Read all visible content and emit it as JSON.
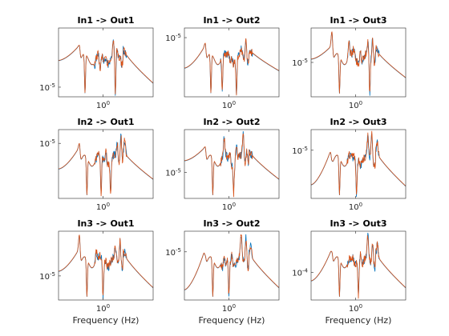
{
  "chart_data": [
    {
      "type": "line",
      "title": "In1 -> Out1",
      "xlabel": "",
      "xtick_label": "10^0",
      "ytick_label": "10^-5",
      "ytick_frac": 0.86,
      "series": [
        {
          "name": "",
          "color": "#0072BD"
        },
        {
          "name": "",
          "color": "#D95319"
        }
      ],
      "modes": [
        [
          0.22,
          0.25
        ],
        [
          0.38,
          0.55
        ],
        [
          0.44,
          0.62
        ],
        [
          0.5,
          0.45
        ],
        [
          0.58,
          0.2
        ],
        [
          0.62,
          0.3
        ],
        [
          0.65,
          0.4
        ]
      ],
      "anti": [
        0.28,
        0.6
      ],
      "edges": [
        0.47,
        0.8
      ]
    },
    {
      "type": "line",
      "title": "In1 -> Out2",
      "xlabel": "",
      "xtick_label": "10^0",
      "ytick_label": "10^-5",
      "ytick_frac": 0.14,
      "series": [
        {
          "name": "",
          "color": "#0072BD"
        },
        {
          "name": "",
          "color": "#D95319"
        }
      ],
      "modes": [
        [
          0.22,
          0.22
        ],
        [
          0.42,
          0.35
        ],
        [
          0.46,
          0.38
        ],
        [
          0.5,
          0.42
        ],
        [
          0.6,
          0.3
        ],
        [
          0.65,
          0.15
        ],
        [
          0.69,
          0.35
        ]
      ],
      "anti": [
        0.28,
        0.4,
        0.55
      ],
      "edges": [
        0.58,
        0.62
      ]
    },
    {
      "type": "line",
      "title": "In1 -> Out3",
      "xlabel": "",
      "xtick_label": "10^0",
      "ytick_label": "10^-5",
      "ytick_frac": 0.5,
      "series": [
        {
          "name": "",
          "color": "#0072BD"
        },
        {
          "name": "",
          "color": "#D95319"
        }
      ],
      "modes": [
        [
          0.22,
          0.05
        ],
        [
          0.4,
          0.2
        ],
        [
          0.45,
          0.3
        ],
        [
          0.52,
          0.35
        ],
        [
          0.6,
          0.2
        ],
        [
          0.65,
          0.15
        ],
        [
          0.69,
          0.3
        ]
      ],
      "anti": [
        0.3,
        0.62
      ],
      "edges": [
        0.45,
        0.72
      ]
    },
    {
      "type": "line",
      "title": "In2 -> Out1",
      "xlabel": "",
      "xtick_label": "10^0",
      "ytick_label": "10^-5",
      "ytick_frac": 0.2,
      "series": [
        {
          "name": "",
          "color": "#0072BD"
        },
        {
          "name": "",
          "color": "#D95319"
        }
      ],
      "modes": [
        [
          0.22,
          0.2
        ],
        [
          0.42,
          0.35
        ],
        [
          0.46,
          0.4
        ],
        [
          0.5,
          0.3
        ],
        [
          0.62,
          0.2
        ],
        [
          0.66,
          0.1
        ],
        [
          0.7,
          0.15
        ]
      ],
      "anti": [
        0.3,
        0.45,
        0.55
      ],
      "edges": [
        0.57,
        0.72
      ]
    },
    {
      "type": "line",
      "title": "In2 -> Out2",
      "xlabel": "",
      "xtick_label": "10^0",
      "ytick_label": "10^-5",
      "ytick_frac": 0.62,
      "series": [
        {
          "name": "",
          "color": "#0072BD"
        },
        {
          "name": "",
          "color": "#D95319"
        }
      ],
      "modes": [
        [
          0.22,
          0.25
        ],
        [
          0.42,
          0.1
        ],
        [
          0.48,
          0.35
        ],
        [
          0.55,
          0.25
        ],
        [
          0.62,
          0.05
        ],
        [
          0.66,
          0.3
        ]
      ],
      "anti": [
        0.3,
        0.52
      ],
      "edges": [
        0.45,
        0.72
      ]
    },
    {
      "type": "line",
      "title": "In2 -> Out3",
      "xlabel": "",
      "xtick_label": "10^0",
      "ytick_label": "10^-5",
      "ytick_frac": 0.3,
      "series": [
        {
          "name": "",
          "color": "#0072BD"
        },
        {
          "name": "",
          "color": "#D95319"
        }
      ],
      "modes": [
        [
          0.22,
          0.45
        ],
        [
          0.4,
          0.35
        ],
        [
          0.44,
          0.4
        ],
        [
          0.5,
          0.45
        ],
        [
          0.6,
          0.1
        ],
        [
          0.64,
          0.05
        ],
        [
          0.7,
          0.2
        ]
      ],
      "anti": [
        0.3,
        0.48
      ],
      "edges": [
        0.8,
        0.82
      ]
    },
    {
      "type": "line",
      "title": "In3 -> Out1",
      "xlabel": "Frequency (Hz)",
      "xtick_label": "10^0",
      "ytick_label": "10^-5",
      "ytick_frac": 0.65,
      "series": [
        {
          "name": "",
          "color": "#0072BD"
        },
        {
          "name": "",
          "color": "#D95319"
        }
      ],
      "modes": [
        [
          0.22,
          0.05
        ],
        [
          0.4,
          0.3
        ],
        [
          0.44,
          0.35
        ],
        [
          0.5,
          0.4
        ],
        [
          0.6,
          0.25
        ],
        [
          0.65,
          0.15
        ],
        [
          0.7,
          0.3
        ]
      ],
      "anti": [
        0.3,
        0.47
      ],
      "edges": [
        0.58,
        0.82
      ]
    },
    {
      "type": "line",
      "title": "In3 -> Out2",
      "xlabel": "Frequency (Hz)",
      "xtick_label": "10^0",
      "ytick_label": "10^-5",
      "ytick_frac": 0.3,
      "series": [
        {
          "name": "",
          "color": "#0072BD"
        },
        {
          "name": "",
          "color": "#D95319"
        }
      ],
      "modes": [
        [
          0.22,
          0.35
        ],
        [
          0.4,
          0.55
        ],
        [
          0.44,
          0.5
        ],
        [
          0.5,
          0.35
        ],
        [
          0.6,
          0.05
        ],
        [
          0.65,
          0.1
        ],
        [
          0.7,
          0.2
        ]
      ],
      "anti": [
        0.3,
        0.47
      ],
      "edges": [
        0.85,
        0.82
      ]
    },
    {
      "type": "line",
      "title": "In3 -> Out3",
      "xlabel": "Frequency (Hz)",
      "xtick_label": "10^0",
      "ytick_label": "10^-4",
      "ytick_frac": 0.6,
      "series": [
        {
          "name": "",
          "color": "#0072BD"
        },
        {
          "name": "",
          "color": "#D95319"
        }
      ],
      "modes": [
        [
          0.22,
          0.3
        ],
        [
          0.42,
          0.4
        ],
        [
          0.46,
          0.5
        ],
        [
          0.52,
          0.35
        ],
        [
          0.6,
          0.05
        ],
        [
          0.65,
          0.15
        ],
        [
          0.7,
          0.2
        ]
      ],
      "anti": [
        0.3,
        0.5
      ],
      "edges": [
        0.72,
        0.82
      ]
    }
  ]
}
